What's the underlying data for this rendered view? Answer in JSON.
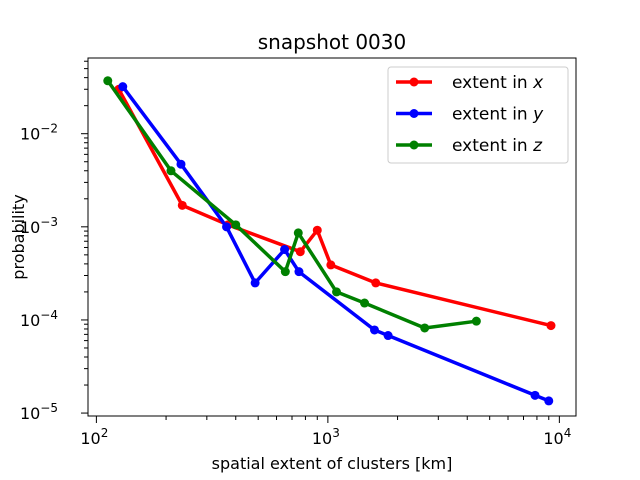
{
  "chart_data": {
    "type": "line",
    "title": "snapshot 0030",
    "xlabel": "spatial extent of clusters [km]",
    "ylabel": "probability",
    "xscale": "log",
    "yscale": "log",
    "xlim": [
      92,
      11800
    ],
    "ylim": [
      9.3e-06,
      0.065
    ],
    "xticks": [
      {
        "value": 100,
        "base": "10",
        "exp": "2"
      },
      {
        "value": 1000,
        "base": "10",
        "exp": "3"
      },
      {
        "value": 10000,
        "base": "10",
        "exp": "4"
      }
    ],
    "yticks": [
      {
        "value": 1e-05,
        "base": "10",
        "exp": "−5"
      },
      {
        "value": 0.0001,
        "base": "10",
        "exp": "−4"
      },
      {
        "value": 0.001,
        "base": "10",
        "exp": "−3"
      },
      {
        "value": 0.01,
        "base": "10",
        "exp": "−2"
      }
    ],
    "legend_position": "top-right",
    "series": [
      {
        "name": "extent in x",
        "legend_prefix": "extent in ",
        "legend_var": "x",
        "color": "#ff0000",
        "x": [
          125,
          235,
          370,
          760,
          900,
          1030,
          1610,
          9200
        ],
        "y": [
          0.03,
          0.0017,
          0.00105,
          0.00054,
          0.00092,
          0.00039,
          0.00025,
          8.7e-05
        ]
      },
      {
        "name": "extent in y",
        "legend_prefix": "extent in ",
        "legend_var": "y",
        "color": "#0000ff",
        "x": [
          130,
          232,
          365,
          485,
          650,
          750,
          1590,
          1820,
          7850,
          9000
        ],
        "y": [
          0.032,
          0.0047,
          0.001,
          0.00025,
          0.00057,
          0.00033,
          7.8e-05,
          6.8e-05,
          1.55e-05,
          1.35e-05
        ]
      },
      {
        "name": "extent in z",
        "legend_prefix": "extent in ",
        "legend_var": "z",
        "color": "#008000",
        "x": [
          112,
          210,
          400,
          655,
          745,
          1090,
          1440,
          2620,
          4380
        ],
        "y": [
          0.037,
          0.004,
          0.00105,
          0.00033,
          0.00086,
          0.0002,
          0.000152,
          8.2e-05,
          9.7e-05
        ]
      }
    ]
  }
}
